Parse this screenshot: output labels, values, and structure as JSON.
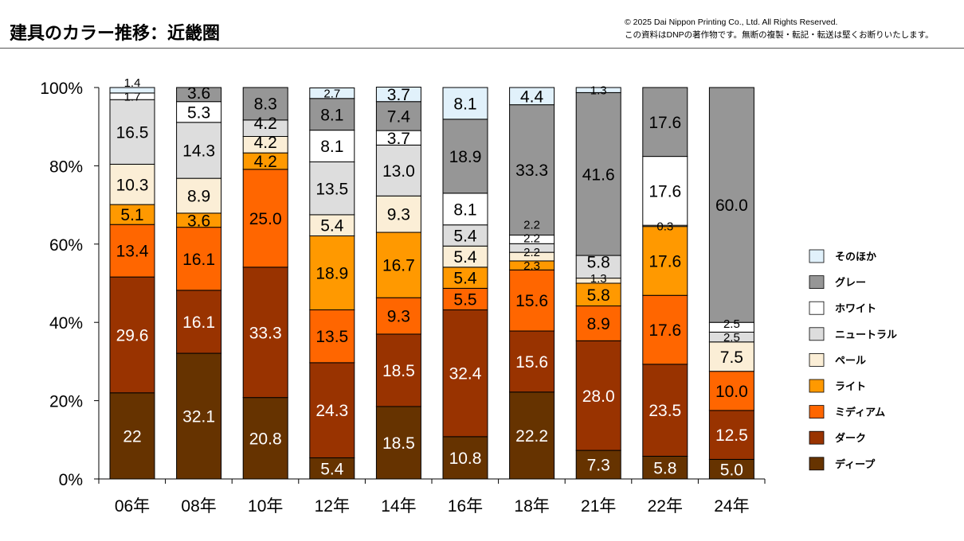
{
  "header": {
    "title": "建具のカラー推移：近畿圏",
    "copyright": "© 2025 Dai Nippon Printing Co., Ltd. All Rights Reserved.",
    "notice": "この資料はDNPの著作物です。無断の複製・転記・転送は堅くお断りいたします。"
  },
  "chart_data": {
    "type": "bar",
    "stacked": true,
    "title": "建具のカラー推移：近畿圏",
    "xlabel": "",
    "ylabel": "",
    "ylim": [
      0,
      100
    ],
    "yticks": [
      "0%",
      "20%",
      "40%",
      "60%",
      "80%",
      "100%"
    ],
    "legend_position": "right",
    "categories": [
      "06年",
      "08年",
      "10年",
      "12年",
      "14年",
      "16年",
      "18年",
      "21年",
      "22年",
      "24年"
    ],
    "series": [
      {
        "name": "ディープ",
        "color": "#663300",
        "values": [
          22,
          32.1,
          20.8,
          5.4,
          18.5,
          10.8,
          22.2,
          7.3,
          5.8,
          5.0
        ],
        "labels": [
          "22",
          "32.1",
          "20.8",
          "5.4",
          "18.5",
          "10.8",
          "22.2",
          "7.3",
          "5.8",
          "5.0"
        ]
      },
      {
        "name": "ダーク",
        "color": "#993300",
        "values": [
          29.6,
          16.1,
          33.3,
          24.3,
          18.5,
          32.4,
          15.6,
          28.0,
          23.5,
          12.5
        ],
        "labels": [
          "29.6",
          "16.1",
          "33.3",
          "24.3",
          "18.5",
          "32.4",
          "15.6",
          "28.0",
          "23.5",
          "12.5"
        ]
      },
      {
        "name": "ミディアム",
        "color": "#ff6600",
        "values": [
          13.4,
          16.1,
          25.0,
          13.5,
          9.3,
          5.5,
          15.6,
          8.9,
          17.6,
          10.0
        ],
        "labels": [
          "13.4",
          "16.1",
          "25.0",
          "13.5",
          "9.3",
          "5.5",
          "15.6",
          "8.9",
          "17.6",
          "10.0"
        ]
      },
      {
        "name": "ライト",
        "color": "#ff9900",
        "values": [
          5.1,
          3.6,
          4.2,
          18.9,
          16.7,
          5.4,
          2.3,
          5.8,
          17.6,
          0
        ],
        "labels": [
          "5.1",
          "3.6",
          "4.2",
          "18.9",
          "16.7",
          "5.4",
          "2.3",
          "5.8",
          "17.6",
          ""
        ]
      },
      {
        "name": "ペール",
        "color": "#fbeed6",
        "values": [
          10.3,
          8.9,
          4.2,
          5.4,
          9.3,
          5.4,
          2.2,
          1.3,
          0.3,
          7.5
        ],
        "labels": [
          "10.3",
          "8.9",
          "4.2",
          "5.4",
          "9.3",
          "5.4",
          "2.2",
          "1.3",
          "0.3",
          "7.5"
        ]
      },
      {
        "name": "ニュートラル",
        "color": "#dddddd",
        "values": [
          16.5,
          14.3,
          4.2,
          13.5,
          13.0,
          5.4,
          2.2,
          5.8,
          0,
          2.5
        ],
        "labels": [
          "16.5",
          "14.3",
          "4.2",
          "13.5",
          "13.0",
          "5.4",
          "2.2",
          "5.8",
          "",
          "2.5"
        ]
      },
      {
        "name": "ホワイト",
        "color": "#ffffff",
        "values": [
          1.7,
          5.3,
          0,
          8.1,
          3.7,
          8.1,
          2.2,
          0,
          17.6,
          2.5
        ],
        "labels": [
          "1.7",
          "5.3",
          "",
          "8.1",
          "3.7",
          "8.1",
          "2.2",
          "",
          "17.6",
          "2.5"
        ]
      },
      {
        "name": "グレー",
        "color": "#969696",
        "values": [
          0,
          3.6,
          8.3,
          8.1,
          7.4,
          18.9,
          33.3,
          41.6,
          17.6,
          60.0
        ],
        "labels": [
          "",
          "3.6",
          "8.3",
          "8.1",
          "7.4",
          "18.9",
          "33.3",
          "41.6",
          "17.6",
          "60.0"
        ]
      },
      {
        "name": "そのほか",
        "color": "#e1f1fb",
        "values": [
          1.4,
          0,
          0,
          2.7,
          3.7,
          8.1,
          4.4,
          1.3,
          0,
          0
        ],
        "labels": [
          "1.4",
          "",
          "",
          "2.7",
          "3.7",
          "8.1",
          "4.4",
          "1.3",
          "",
          ""
        ]
      }
    ]
  }
}
